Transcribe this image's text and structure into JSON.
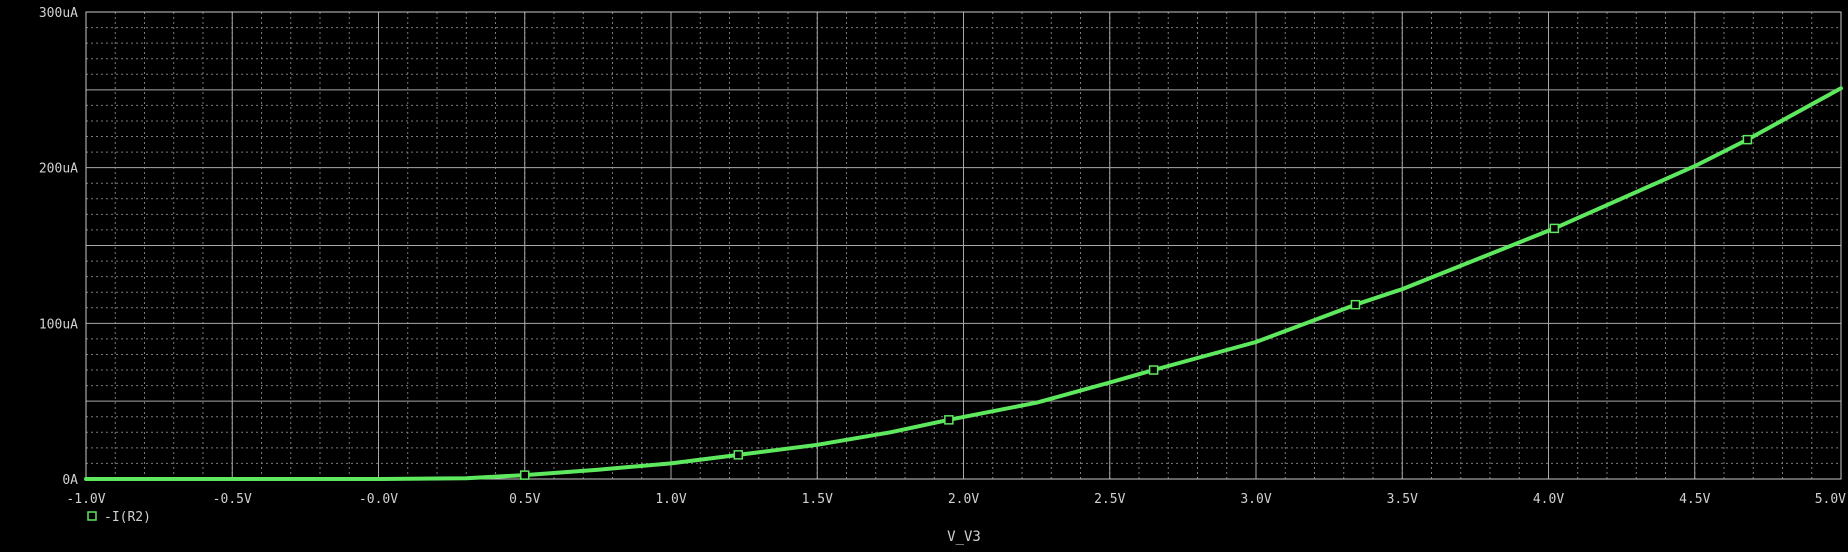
{
  "chart_data": {
    "type": "line",
    "xlabel": "V_V3",
    "ylabel": "",
    "xlim": [
      -1.0,
      5.0
    ],
    "ylim": [
      0,
      300
    ],
    "x_tick_values": [
      -1.0,
      -0.5,
      0.0,
      0.5,
      1.0,
      1.5,
      2.0,
      2.5,
      3.0,
      3.5,
      4.0,
      4.5,
      5.0
    ],
    "x_tick_labels": [
      "-1.0V",
      "-0.5V",
      "-0.0V",
      "0.5V",
      "1.0V",
      "1.5V",
      "2.0V",
      "2.5V",
      "3.0V",
      "3.5V",
      "4.0V",
      "4.5V",
      "5.0V"
    ],
    "y_tick_values": [
      0,
      100,
      200,
      300
    ],
    "y_tick_labels": [
      "0A",
      "100uA",
      "200uA",
      "300uA"
    ],
    "grid": true,
    "legend_position": "bottom-left",
    "series": [
      {
        "name": "-I(R2)",
        "color": "#5ee85e",
        "marker": "square",
        "x": [
          -1.0,
          -0.5,
          0.0,
          0.3,
          0.5,
          0.75,
          1.0,
          1.23,
          1.5,
          1.75,
          1.95,
          2.25,
          2.5,
          2.65,
          3.0,
          3.34,
          3.5,
          4.02,
          4.5,
          4.68,
          5.0
        ],
        "y": [
          0,
          0,
          0,
          0.5,
          2.5,
          6,
          10,
          15.5,
          22,
          30,
          38,
          49,
          62,
          70,
          88,
          112,
          122,
          161,
          201,
          218,
          251
        ],
        "marker_x": [
          0.5,
          1.23,
          1.95,
          2.65,
          3.34,
          4.02,
          4.68
        ],
        "marker_y": [
          2.5,
          15.5,
          38,
          70,
          112,
          161,
          218
        ]
      }
    ]
  }
}
